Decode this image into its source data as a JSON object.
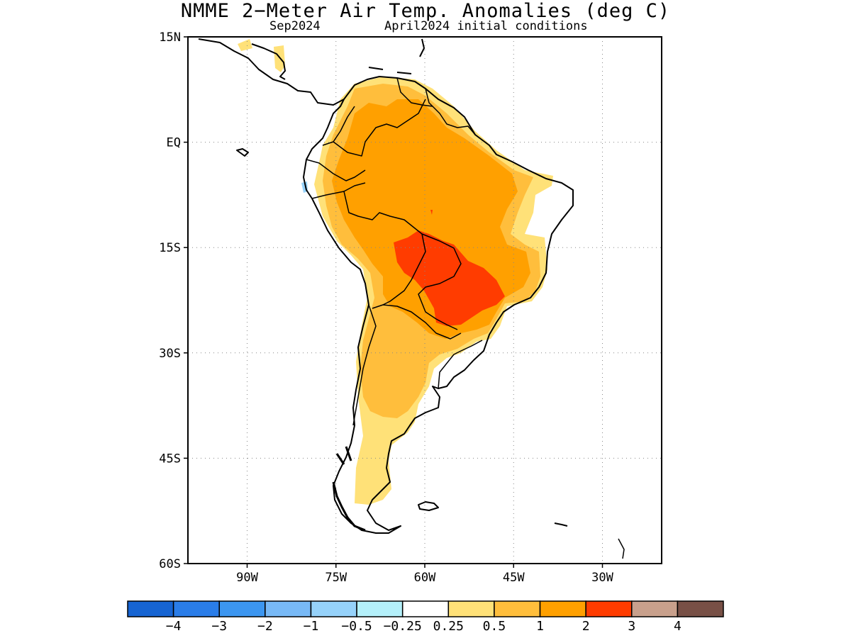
{
  "title": "NMME 2−Meter Air Temp. Anomalies (deg C)",
  "subtitle_left": "Sep2024",
  "subtitle_right": "April2024 initial conditions",
  "map": {
    "lat_labels": [
      "15N",
      "EQ",
      "15S",
      "30S",
      "45S",
      "60S"
    ],
    "lon_labels": [
      "90W",
      "75W",
      "60W",
      "45W",
      "30W"
    ],
    "lat_values": [
      15,
      0,
      -15,
      -30,
      -45,
      -60
    ],
    "lon_values": [
      -90,
      -75,
      -60,
      -45,
      -30
    ],
    "lon_range": [
      -100,
      -20
    ],
    "lat_range": [
      -60,
      15
    ],
    "grid": "dotted"
  },
  "colorbar": {
    "colors": [
      "#1664d2",
      "#2a7de8",
      "#3c96f0",
      "#78b9f6",
      "#96d2fa",
      "#b4f0fa",
      "#ffffff",
      "#ffe178",
      "#ffbe3c",
      "#ffa000",
      "#ff3c00",
      "#c8a08c",
      "#785046"
    ],
    "labels": [
      "−4",
      "−3",
      "−2",
      "−1",
      "−0.5",
      "−0.25",
      "0.25",
      "0.5",
      "1",
      "2",
      "3",
      "4"
    ]
  }
}
